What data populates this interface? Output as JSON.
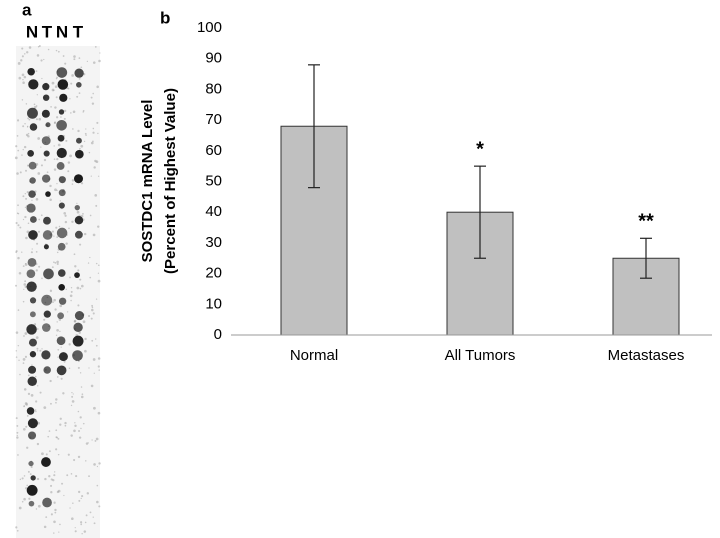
{
  "panel_a": {
    "label": "a",
    "lanes": [
      "N",
      "T",
      "N",
      "T"
    ]
  },
  "panel_b": {
    "label": "b"
  },
  "chart_data": {
    "type": "bar",
    "ylabel": [
      "SOSTDC1 mRNA Level",
      "(Percent of Highest Value)"
    ],
    "categories": [
      "Normal",
      "All Tumors",
      "Metastases"
    ],
    "values": [
      68,
      40,
      25
    ],
    "errors": [
      20,
      15,
      6.5
    ],
    "significance": [
      null,
      "*",
      "**"
    ],
    "color": "#c0c0c0",
    "ylim": [
      0,
      100
    ],
    "yticks": [
      0,
      10,
      20,
      30,
      40,
      50,
      60,
      70,
      80,
      90,
      100
    ],
    "grid": false
  }
}
